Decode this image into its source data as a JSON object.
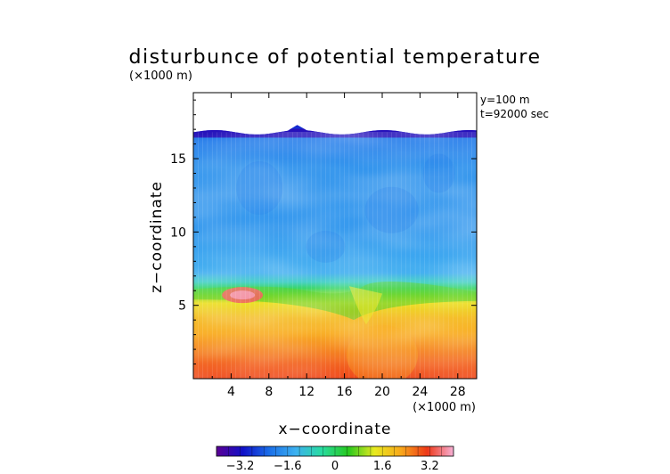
{
  "chart_data": {
    "type": "heatmap",
    "title": "disturbunce of potential temperature",
    "xlabel": "x−coordinate",
    "ylabel": "z−coordinate",
    "x_unit": "(×1000 m)",
    "y_unit": "(×1000 m)",
    "annotations": [
      "y=100 m",
      "t=92000 sec"
    ],
    "xlim": [
      0,
      30
    ],
    "ylim": [
      0,
      19.5
    ],
    "x_ticks": [
      4,
      8,
      12,
      16,
      20,
      24,
      28
    ],
    "x_tick_labels": [
      "4",
      "8",
      "12",
      "16",
      "20",
      "24",
      "28"
    ],
    "y_ticks": [
      5,
      10,
      15
    ],
    "y_tick_labels": [
      "5",
      "10",
      "15"
    ],
    "colorbar": {
      "range": [
        -4.0,
        4.0
      ],
      "ticks": [
        -3.2,
        -1.6,
        0,
        1.6,
        3.2
      ],
      "tick_labels": [
        "−3.2",
        "−1.6",
        "0",
        "1.6",
        "3.2"
      ],
      "colormap": [
        "#5b0094",
        "#1010c8",
        "#1a6ee8",
        "#3cb0f0",
        "#28dca0",
        "#26c81e",
        "#e8ea20",
        "#f8a81a",
        "#ee3818",
        "#f6b0d6"
      ]
    },
    "field_profile": {
      "z": [
        0,
        1,
        2,
        3,
        4,
        5,
        5.5,
        6.0,
        6.4,
        7,
        8,
        10,
        14,
        16,
        16.8
      ],
      "value": [
        3.0,
        2.8,
        2.5,
        2.2,
        2.0,
        1.5,
        0.9,
        0.0,
        -0.8,
        -1.4,
        -1.5,
        -1.7,
        -1.75,
        -2.1,
        -3.0
      ]
    },
    "field_top_z": 16.8
  }
}
